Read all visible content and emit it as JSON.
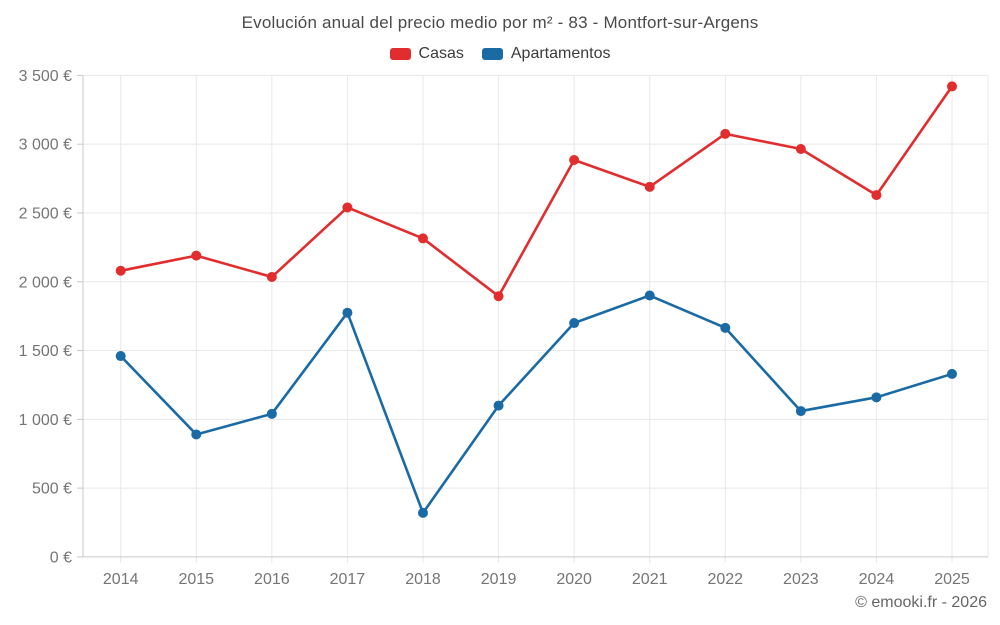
{
  "title": "Evolución anual del precio medio por m² - 83 - Montfort-sur-Argens",
  "watermark": "© emooki.fr - 2026",
  "colors": {
    "casas": "#e12d2d",
    "apartamentos": "#1a6aa5",
    "grid": "#e8e8e8",
    "axis": "#c9c9c9",
    "tick_label": "#757575",
    "title_text": "#4a4a4a",
    "legend_text": "#3c3c3c",
    "watermark_text": "#666666",
    "background": "#ffffff"
  },
  "chart_data": {
    "type": "line",
    "title": "Evolución anual del precio medio por m² - 83 - Montfort-sur-Argens",
    "categories": [
      "2014",
      "2015",
      "2016",
      "2017",
      "2018",
      "2019",
      "2020",
      "2021",
      "2022",
      "2023",
      "2024",
      "2025"
    ],
    "series": [
      {
        "name": "Casas",
        "color": "#e12d2d",
        "values": [
          2080,
          2190,
          2035,
          2540,
          2315,
          1895,
          2885,
          2690,
          3075,
          2965,
          2630,
          3420
        ]
      },
      {
        "name": "Apartamentos",
        "color": "#1a6aa5",
        "values": [
          1460,
          890,
          1040,
          1775,
          320,
          1100,
          1700,
          1900,
          1665,
          1060,
          1160,
          1330
        ]
      }
    ],
    "xlabel": "",
    "ylabel": "",
    "ylim": [
      0,
      3500
    ],
    "ytick_step": 500,
    "ytick_suffix": " €",
    "grid": true,
    "legend_position": "top",
    "marker": "circle",
    "annotations": []
  }
}
